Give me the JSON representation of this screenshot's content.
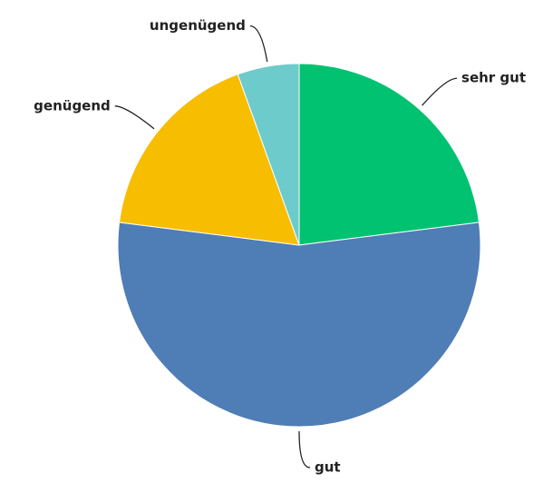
{
  "chart_data": {
    "type": "pie",
    "categories": [
      "sehr gut",
      "gut",
      "genügend",
      "ungenügend"
    ],
    "values": [
      23,
      54,
      17.5,
      5.5
    ],
    "colors": [
      "#00c271",
      "#4f7db5",
      "#f7bd00",
      "#6dcbcb"
    ]
  }
}
